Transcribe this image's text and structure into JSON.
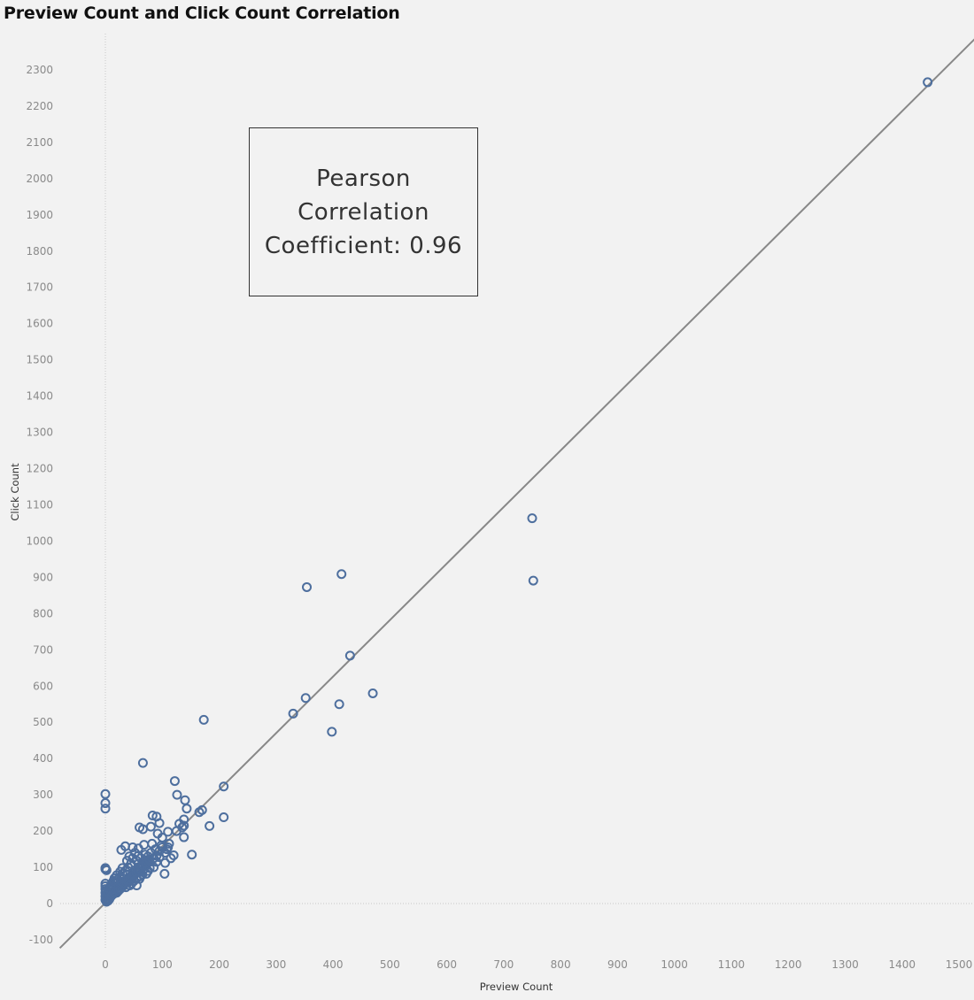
{
  "chart_data": {
    "type": "scatter",
    "title": "Preview Count and Click Count Correlation",
    "xlabel": "Preview Count",
    "ylabel": "Click Count",
    "xlim": [
      -80,
      1530
    ],
    "ylim": [
      -125,
      2400
    ],
    "x_ticks": [
      0,
      100,
      200,
      300,
      400,
      500,
      600,
      700,
      800,
      900,
      1000,
      1100,
      1200,
      1300,
      1400,
      1500
    ],
    "y_ticks": [
      -100,
      0,
      100,
      200,
      300,
      400,
      500,
      600,
      700,
      800,
      900,
      1000,
      1100,
      1200,
      1300,
      1400,
      1500,
      1600,
      1700,
      1800,
      1900,
      2000,
      2100,
      2200,
      2300
    ],
    "grid": false,
    "zero_lines": true,
    "trend_line": {
      "type": "linear",
      "slope": 1.56,
      "intercept": 2,
      "color": "#888888"
    },
    "marker_color": "#4e6f9e",
    "annotation": {
      "line1": "Pearson",
      "line2": "Correlation",
      "line3_prefix": "Coefficient: ",
      "line3_value": "0.96"
    },
    "series": [
      {
        "values": [
          [
            1445,
            2266
          ],
          [
            750,
            1063
          ],
          [
            752,
            891
          ],
          [
            415,
            909
          ],
          [
            354,
            873
          ],
          [
            430,
            684
          ],
          [
            470,
            580
          ],
          [
            352,
            567
          ],
          [
            330,
            524
          ],
          [
            411,
            550
          ],
          [
            398,
            474
          ],
          [
            173,
            507
          ],
          [
            66,
            388
          ],
          [
            122,
            338
          ],
          [
            208,
            323
          ],
          [
            0,
            302
          ],
          [
            0,
            277
          ],
          [
            0,
            262
          ],
          [
            126,
            300
          ],
          [
            140,
            285
          ],
          [
            143,
            262
          ],
          [
            170,
            258
          ],
          [
            165,
            252
          ],
          [
            208,
            238
          ],
          [
            183,
            214
          ],
          [
            83,
            243
          ],
          [
            90,
            240
          ],
          [
            60,
            210
          ],
          [
            66,
            205
          ],
          [
            138,
            232
          ],
          [
            130,
            220
          ],
          [
            138,
            215
          ],
          [
            95,
            222
          ],
          [
            92,
            193
          ],
          [
            100,
            182
          ],
          [
            110,
            198
          ],
          [
            80,
            212
          ],
          [
            138,
            183
          ],
          [
            152,
            135
          ],
          [
            120,
            133
          ],
          [
            115,
            125
          ],
          [
            105,
            112
          ],
          [
            104,
            82
          ],
          [
            75,
            90
          ],
          [
            55,
            50
          ],
          [
            35,
            158
          ],
          [
            28,
            148
          ],
          [
            48,
            155
          ],
          [
            58,
            152
          ],
          [
            68,
            162
          ],
          [
            82,
            165
          ],
          [
            98,
            160
          ],
          [
            110,
            155
          ],
          [
            125,
            200
          ],
          [
            135,
            210
          ],
          [
            0,
            98
          ],
          [
            0,
            95
          ],
          [
            2,
            92
          ],
          [
            0,
            55
          ],
          [
            0,
            48
          ],
          [
            0,
            40
          ],
          [
            2,
            35
          ],
          [
            0,
            30
          ],
          [
            0,
            20
          ],
          [
            0,
            10
          ],
          [
            3,
            25
          ],
          [
            5,
            15
          ],
          [
            6,
            30
          ],
          [
            8,
            20
          ],
          [
            10,
            40
          ],
          [
            12,
            28
          ],
          [
            14,
            50
          ],
          [
            15,
            35
          ],
          [
            18,
            45
          ],
          [
            20,
            30
          ],
          [
            22,
            60
          ],
          [
            24,
            42
          ],
          [
            25,
            55
          ],
          [
            28,
            48
          ],
          [
            30,
            70
          ],
          [
            32,
            52
          ],
          [
            34,
            62
          ],
          [
            36,
            45
          ],
          [
            38,
            80
          ],
          [
            40,
            58
          ],
          [
            42,
            72
          ],
          [
            45,
            65
          ],
          [
            48,
            85
          ],
          [
            50,
            78
          ],
          [
            52,
            92
          ],
          [
            55,
            70
          ],
          [
            58,
            100
          ],
          [
            60,
            88
          ],
          [
            62,
            75
          ],
          [
            65,
            110
          ],
          [
            68,
            95
          ],
          [
            70,
            120
          ],
          [
            72,
            105
          ],
          [
            75,
            130
          ],
          [
            78,
            115
          ],
          [
            80,
            140
          ],
          [
            85,
            125
          ],
          [
            88,
            150
          ],
          [
            90,
            132
          ],
          [
            95,
            145
          ],
          [
            100,
            155
          ],
          [
            105,
            140
          ],
          [
            108,
            150
          ],
          [
            112,
            165
          ],
          [
            45,
            110
          ],
          [
            40,
            100
          ],
          [
            35,
            90
          ],
          [
            30,
            82
          ],
          [
            28,
            60
          ],
          [
            25,
            72
          ],
          [
            20,
            65
          ],
          [
            18,
            55
          ],
          [
            15,
            58
          ],
          [
            12,
            45
          ],
          [
            10,
            52
          ],
          [
            8,
            38
          ],
          [
            6,
            42
          ],
          [
            4,
            28
          ],
          [
            3,
            12
          ],
          [
            2,
            5
          ],
          [
            5,
            8
          ],
          [
            7,
            12
          ],
          [
            9,
            18
          ],
          [
            11,
            22
          ],
          [
            13,
            25
          ],
          [
            16,
            28
          ],
          [
            19,
            32
          ],
          [
            21,
            38
          ],
          [
            23,
            35
          ],
          [
            26,
            40
          ],
          [
            29,
            45
          ],
          [
            31,
            48
          ],
          [
            33,
            55
          ],
          [
            37,
            58
          ],
          [
            39,
            62
          ],
          [
            41,
            66
          ],
          [
            44,
            70
          ],
          [
            47,
            75
          ],
          [
            51,
            80
          ],
          [
            54,
            85
          ],
          [
            57,
            90
          ],
          [
            61,
            96
          ],
          [
            64,
            100
          ],
          [
            67,
            105
          ],
          [
            71,
            112
          ],
          [
            74,
            118
          ],
          [
            77,
            122
          ],
          [
            50,
            62
          ],
          [
            46,
            55
          ],
          [
            43,
            50
          ],
          [
            60,
            68
          ],
          [
            65,
            80
          ],
          [
            55,
            118
          ],
          [
            62,
            125
          ],
          [
            70,
            135
          ],
          [
            48,
            125
          ],
          [
            42,
            130
          ],
          [
            38,
            118
          ],
          [
            52,
            140
          ],
          [
            58,
            132
          ],
          [
            85,
            100
          ],
          [
            90,
            115
          ],
          [
            95,
            128
          ],
          [
            78,
            98
          ],
          [
            72,
            82
          ],
          [
            30,
            98
          ],
          [
            26,
            88
          ],
          [
            20,
            78
          ],
          [
            16,
            70
          ],
          [
            14,
            62
          ]
        ]
      }
    ]
  }
}
